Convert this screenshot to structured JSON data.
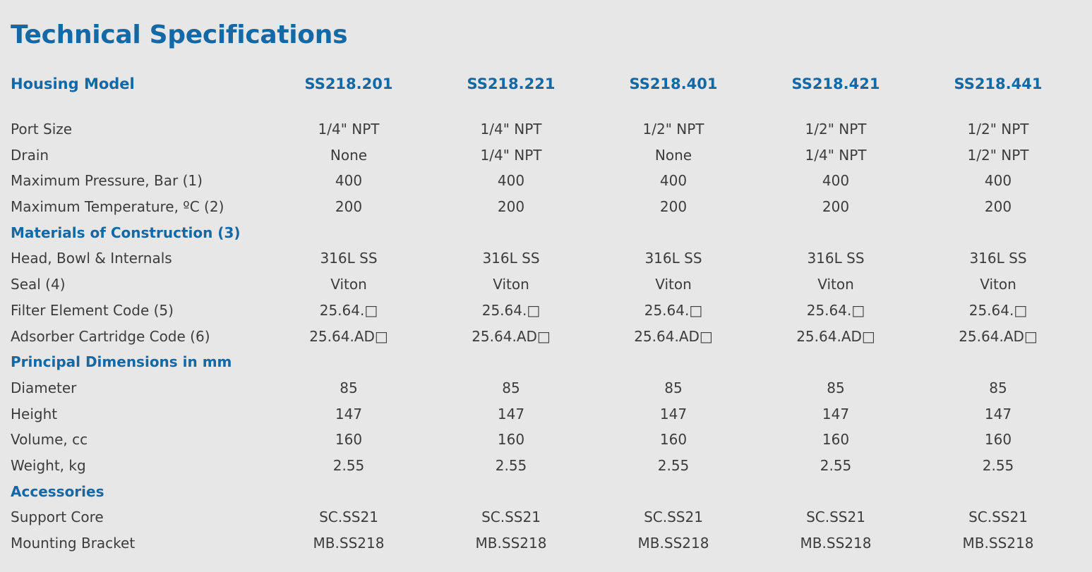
{
  "title": "Technical Specifications",
  "header": {
    "label": "Housing Model",
    "models": [
      "SS218.201",
      "SS218.221",
      "SS218.401",
      "SS218.421",
      "SS218.441"
    ]
  },
  "rows": [
    {
      "type": "data",
      "label": "Port Size",
      "values": [
        "1/4\" NPT",
        "1/4\" NPT",
        "1/2\" NPT",
        "1/2\" NPT",
        "1/2\" NPT"
      ]
    },
    {
      "type": "data",
      "label": "Drain",
      "values": [
        "None",
        "1/4\" NPT",
        "None",
        "1/4\" NPT",
        "1/2\" NPT"
      ]
    },
    {
      "type": "data",
      "label": "Maximum Pressure, Bar (1)",
      "values": [
        "400",
        "400",
        "400",
        "400",
        "400"
      ]
    },
    {
      "type": "data",
      "label": "Maximum Temperature, ºC (2)",
      "values": [
        "200",
        "200",
        "200",
        "200",
        "200"
      ]
    },
    {
      "type": "section",
      "label": "Materials of Construction (3)"
    },
    {
      "type": "data",
      "label": "Head, Bowl & Internals",
      "values": [
        "316L SS",
        "316L SS",
        "316L SS",
        "316L SS",
        "316L SS"
      ]
    },
    {
      "type": "data",
      "label": "Seal (4)",
      "values": [
        "Viton",
        "Viton",
        "Viton",
        "Viton",
        "Viton"
      ]
    },
    {
      "type": "data",
      "label": "Filter Element Code (5)",
      "values": [
        "25.64.□",
        "25.64.□",
        "25.64.□",
        "25.64.□",
        "25.64.□"
      ]
    },
    {
      "type": "data",
      "label": "Adsorber Cartridge Code (6)",
      "values": [
        "25.64.AD□",
        "25.64.AD□",
        "25.64.AD□",
        "25.64.AD□",
        "25.64.AD□"
      ]
    },
    {
      "type": "section",
      "label": "Principal Dimensions in mm"
    },
    {
      "type": "data",
      "label": "Diameter",
      "values": [
        "85",
        "85",
        "85",
        "85",
        "85"
      ]
    },
    {
      "type": "data",
      "label": "Height",
      "values": [
        "147",
        "147",
        "147",
        "147",
        "147"
      ]
    },
    {
      "type": "data",
      "label": "Volume, cc",
      "values": [
        "160",
        "160",
        "160",
        "160",
        "160"
      ]
    },
    {
      "type": "data",
      "label": "Weight, kg",
      "values": [
        "2.55",
        "2.55",
        "2.55",
        "2.55",
        "2.55"
      ]
    },
    {
      "type": "section",
      "label": "Accessories"
    },
    {
      "type": "data",
      "label": "Support Core",
      "values": [
        "SC.SS21",
        "SC.SS21",
        "SC.SS21",
        "SC.SS21",
        "SC.SS21"
      ]
    },
    {
      "type": "data",
      "label": "Mounting Bracket",
      "values": [
        "MB.SS218",
        "MB.SS218",
        "MB.SS218",
        "MB.SS218",
        "MB.SS218"
      ]
    }
  ],
  "colors": {
    "background": "#e7e7e7",
    "accent": "#1368a6",
    "text": "#3c3c3c"
  }
}
